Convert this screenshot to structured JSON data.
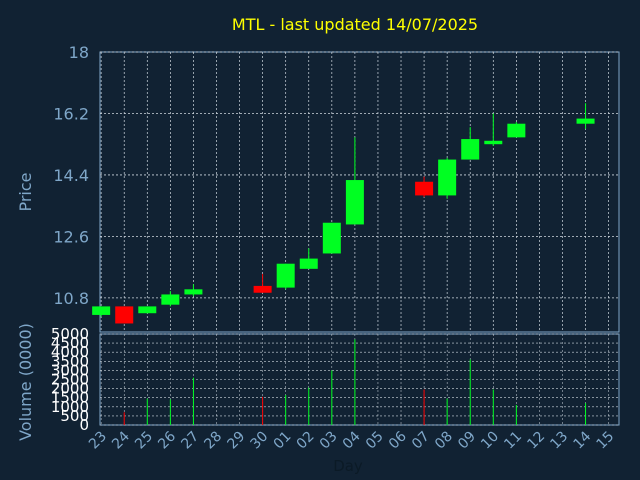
{
  "chart_data": {
    "type": "candlestick",
    "title": "MTL - last updated 14/07/2025",
    "ylabel": "Price",
    "volume_label": "Volume (0000)",
    "xlabel": "Day",
    "ylim": [
      9.8,
      18
    ],
    "yticks": [
      "18",
      "16.2",
      "14.4",
      "12.6",
      "10.8"
    ],
    "ytick_values": [
      18,
      16.2,
      14.4,
      12.6,
      10.8
    ],
    "volume_ylim": [
      0,
      5000
    ],
    "volume_ticks": [
      "5000",
      "4500",
      "4000",
      "3500",
      "3000",
      "2500",
      "2000",
      "1500",
      "1000",
      "500",
      "0"
    ],
    "volume_tick_values": [
      5000,
      4500,
      4000,
      3500,
      3000,
      2500,
      2000,
      1500,
      1000,
      500,
      0
    ],
    "x_labels": [
      "23",
      "24",
      "25",
      "26",
      "27",
      "28",
      "29",
      "30",
      "01",
      "02",
      "03",
      "04",
      "05",
      "06",
      "07",
      "08",
      "09",
      "10",
      "11",
      "12",
      "13",
      "14",
      "15"
    ],
    "grid": true,
    "up_color": "#00ff22",
    "down_color": "#ff0000",
    "candles": [
      {
        "x": "23",
        "open": 10.3,
        "high": 10.55,
        "low": 10.25,
        "close": 10.55,
        "volume": 0
      },
      {
        "x": "24",
        "open": 10.55,
        "high": 10.55,
        "low": 10.05,
        "close": 10.05,
        "volume": 700
      },
      {
        "x": "25",
        "open": 10.35,
        "high": 10.55,
        "low": 10.35,
        "close": 10.55,
        "volume": 1450
      },
      {
        "x": "26",
        "open": 10.6,
        "high": 11.0,
        "low": 10.55,
        "close": 10.9,
        "volume": 1400
      },
      {
        "x": "27",
        "open": 10.9,
        "high": 11.2,
        "low": 10.85,
        "close": 11.05,
        "volume": 2600
      },
      {
        "x": "30",
        "open": 11.15,
        "high": 11.5,
        "low": 10.95,
        "close": 10.95,
        "volume": 1550
      },
      {
        "x": "01",
        "open": 11.1,
        "high": 11.8,
        "low": 11.05,
        "close": 11.8,
        "volume": 1650
      },
      {
        "x": "02",
        "open": 11.65,
        "high": 12.25,
        "low": 11.65,
        "close": 11.95,
        "volume": 2050
      },
      {
        "x": "03",
        "open": 12.1,
        "high": 13.0,
        "low": 12.1,
        "close": 13.0,
        "volume": 3000
      },
      {
        "x": "04",
        "open": 12.95,
        "high": 15.5,
        "low": 12.95,
        "close": 14.25,
        "volume": 4700
      },
      {
        "x": "07",
        "open": 14.2,
        "high": 14.35,
        "low": 13.75,
        "close": 13.8,
        "volume": 1950
      },
      {
        "x": "08",
        "open": 13.8,
        "high": 14.9,
        "low": 13.7,
        "close": 14.85,
        "volume": 1450
      },
      {
        "x": "09",
        "open": 14.85,
        "high": 15.8,
        "low": 14.85,
        "close": 15.45,
        "volume": 3600
      },
      {
        "x": "10",
        "open": 15.3,
        "high": 16.2,
        "low": 15.25,
        "close": 15.4,
        "volume": 1950
      },
      {
        "x": "11",
        "open": 15.5,
        "high": 15.95,
        "low": 15.5,
        "close": 15.9,
        "volume": 1100
      },
      {
        "x": "14",
        "open": 15.9,
        "high": 16.5,
        "low": 15.75,
        "close": 16.05,
        "volume": 1200
      }
    ]
  }
}
